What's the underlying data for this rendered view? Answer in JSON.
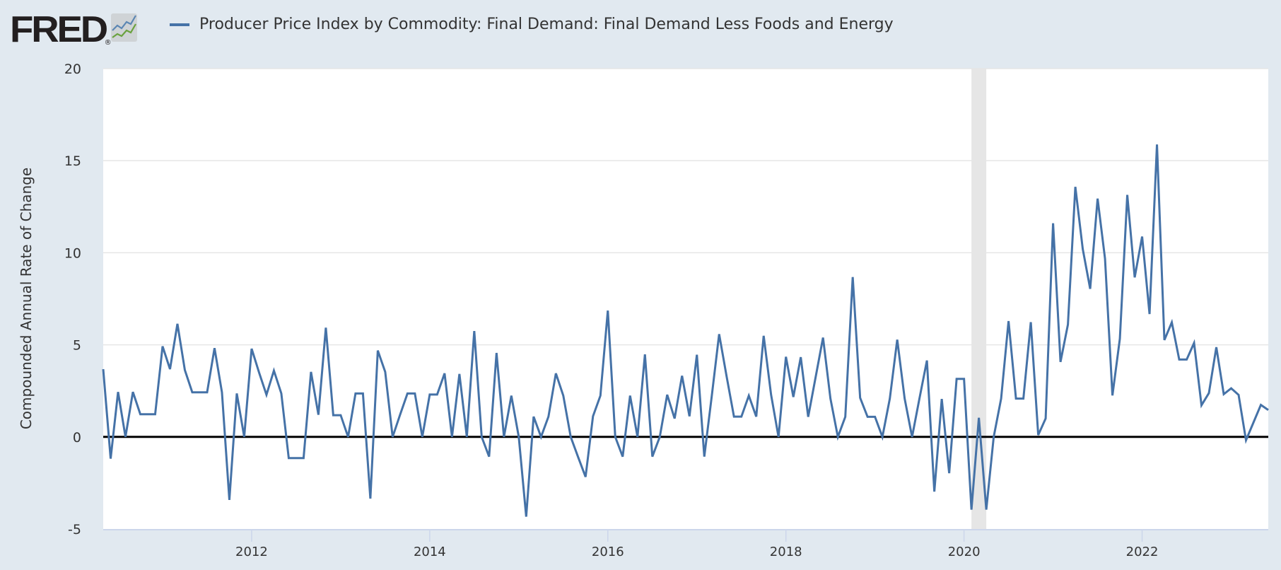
{
  "header": {
    "logo_text": "FRED",
    "logo_mark": "®",
    "logo_icon": "chart-line-icon"
  },
  "colors": {
    "background": "#e1e9f0",
    "series": "#4572a7",
    "recession": "#e6e6e6",
    "grid": "#e6e6e6",
    "zero_line": "#000000"
  },
  "chart_data": {
    "type": "line",
    "title": "",
    "legend": [
      "Producer Price Index by Commodity: Final Demand: Final Demand Less Foods and Energy"
    ],
    "legend_placement": "top-left",
    "xlabel": "",
    "ylabel": "Compounded Annual Rate of Change",
    "ylim": [
      -5,
      20
    ],
    "yticks": [
      "20",
      "15",
      "10",
      "5",
      "0",
      "-5"
    ],
    "ytick_values": [
      20,
      15,
      10,
      5,
      0,
      -5
    ],
    "xticks": [
      "2012",
      "2014",
      "2016",
      "2018",
      "2020",
      "2022"
    ],
    "frequency": "monthly",
    "start": "2010-05",
    "end": "2023-06",
    "grid": true,
    "recessions": [
      {
        "start": "2020-02",
        "end": "2020-04"
      }
    ],
    "series": [
      {
        "name": "Producer Price Index by Commodity: Final Demand: Final Demand Less Foods and Energy",
        "values": [
          3.68,
          -1.18,
          2.44,
          0,
          2.44,
          1.23,
          1.23,
          1.23,
          4.92,
          3.68,
          6.14,
          3.63,
          2.42,
          2.42,
          2.42,
          4.82,
          2.42,
          -3.42,
          2.36,
          0,
          4.79,
          3.5,
          2.29,
          3.6,
          2.36,
          -1.15,
          -1.15,
          -1.15,
          3.53,
          1.2,
          5.93,
          1.18,
          1.18,
          0,
          2.36,
          2.36,
          -3.35,
          4.69,
          3.53,
          0,
          1.2,
          2.36,
          2.36,
          0,
          2.3,
          2.3,
          3.45,
          0,
          3.42,
          0,
          5.75,
          0,
          -1.07,
          4.56,
          0,
          2.24,
          0,
          -4.33,
          1.1,
          0,
          1.1,
          3.45,
          2.24,
          0,
          -1.1,
          -2.17,
          1.12,
          2.24,
          6.86,
          0,
          -1.07,
          2.24,
          0,
          4.48,
          -1.07,
          0,
          2.29,
          1.0,
          3.32,
          1.12,
          4.46,
          -1.07,
          2.2,
          5.58,
          3.3,
          1.1,
          1.1,
          2.24,
          1.1,
          5.49,
          2.29,
          0,
          4.35,
          2.17,
          4.33,
          1.09,
          3.24,
          5.39,
          2.08,
          0,
          1.09,
          8.68,
          2.12,
          1.09,
          1.09,
          0,
          2.08,
          5.28,
          2.08,
          0,
          2.1,
          4.15,
          -2.97,
          2.06,
          -1.97,
          3.15,
          3.15,
          -3.95,
          1.04,
          -3.95,
          0,
          2.08,
          6.29,
          2.08,
          2.08,
          6.23,
          0.1,
          1.0,
          11.6,
          4.07,
          6.1,
          13.58,
          10.2,
          8.04,
          12.94,
          9.68,
          2.25,
          5.33,
          13.14,
          8.66,
          10.88,
          6.67,
          15.88,
          5.26,
          6.22,
          4.2,
          4.2,
          5.1,
          1.72,
          2.38,
          4.87,
          2.32,
          2.64,
          2.28,
          -0.18,
          0.78,
          1.74,
          1.46
        ]
      }
    ]
  }
}
